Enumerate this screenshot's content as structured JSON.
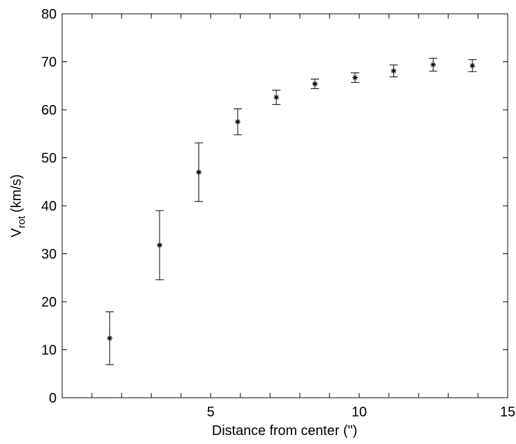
{
  "chart_data": {
    "type": "errorbar-scatter",
    "xlabel": "Distance from center (\")",
    "ylabel": {
      "main": "V",
      "sub": "rot",
      "unit": "(km/s)"
    },
    "x": [
      1.6,
      3.28,
      4.6,
      5.91,
      7.21,
      8.51,
      9.86,
      11.16,
      12.49,
      13.81
    ],
    "values": [
      12.4,
      31.8,
      47.0,
      57.5,
      62.6,
      65.4,
      66.7,
      68.1,
      69.4,
      69.2
    ],
    "errors": [
      5.5,
      7.2,
      6.1,
      2.7,
      1.5,
      1.0,
      1.0,
      1.25,
      1.35,
      1.25
    ],
    "color": "#000000",
    "xlim": [
      0,
      15
    ],
    "xticks": [
      5,
      10,
      15
    ],
    "xminorticks": [
      1,
      2,
      3,
      4,
      6,
      7,
      8,
      9,
      11,
      12,
      13,
      14
    ],
    "ylim": [
      0,
      80
    ],
    "yticks": [
      0,
      10,
      20,
      30,
      40,
      50,
      60,
      70,
      80
    ]
  }
}
